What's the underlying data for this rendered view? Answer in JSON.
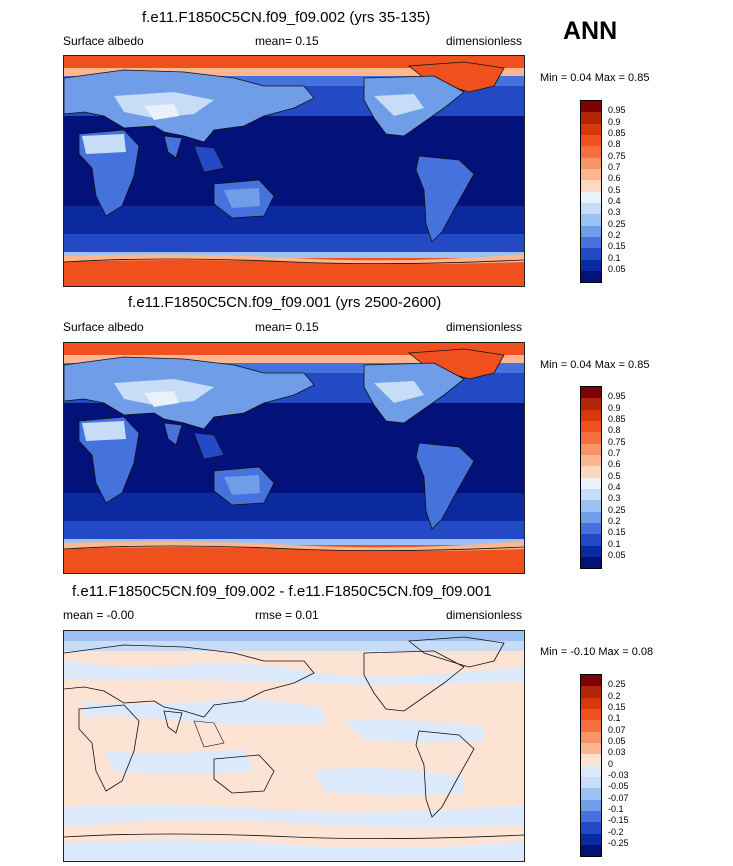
{
  "season": "ANN",
  "panels": [
    {
      "title": "f.e11.F1850C5CN.f09_f09.002 (yrs 35-135)",
      "left_label": "Surface albedo",
      "center_label": "mean=  0.15",
      "right_label": "dimensionless",
      "minmax": "Min =   0.04 Max =   0.85",
      "levels": [
        "0.95",
        "0.9",
        "0.85",
        "0.8",
        "0.75",
        "0.7",
        "0.6",
        "0.5",
        "0.4",
        "0.3",
        "0.25",
        "0.2",
        "0.15",
        "0.1",
        "0.05"
      ],
      "colors": [
        "#7f0000",
        "#b02505",
        "#d4380b",
        "#f0501e",
        "#f5703f",
        "#f99468",
        "#fcb690",
        "#fcd9c3",
        "#eaf1fb",
        "#c7dcf7",
        "#9dc1f2",
        "#6f9de8",
        "#4672de",
        "#2449c4",
        "#0c2aa0",
        "#03117a"
      ]
    },
    {
      "title": "f.e11.F1850C5CN.f09_f09.001 (yrs 2500-2600)",
      "left_label": "Surface albedo",
      "center_label": "mean=  0.15",
      "right_label": "dimensionless",
      "minmax": "Min =   0.04 Max =   0.85",
      "levels": [
        "0.95",
        "0.9",
        "0.85",
        "0.8",
        "0.75",
        "0.7",
        "0.6",
        "0.5",
        "0.4",
        "0.3",
        "0.25",
        "0.2",
        "0.15",
        "0.1",
        "0.05"
      ],
      "colors": [
        "#7f0000",
        "#b02505",
        "#d4380b",
        "#f0501e",
        "#f5703f",
        "#f99468",
        "#fcb690",
        "#fcd9c3",
        "#eaf1fb",
        "#c7dcf7",
        "#9dc1f2",
        "#6f9de8",
        "#4672de",
        "#2449c4",
        "#0c2aa0",
        "#03117a"
      ]
    },
    {
      "title": "f.e11.F1850C5CN.f09_f09.002 - f.e11.F1850C5CN.f09_f09.001",
      "left_label": "mean =  -0.00",
      "center_label": "rmse =  0.01",
      "right_label": "dimensionless",
      "minmax": "Min =  -0.10 Max =   0.08",
      "levels": [
        "0.25",
        "0.2",
        "0.15",
        "0.1",
        "0.07",
        "0.05",
        "0.03",
        "0",
        "-0.03",
        "-0.05",
        "-0.07",
        "-0.1",
        "-0.15",
        "-0.2",
        "-0.25"
      ],
      "colors": [
        "#7f0000",
        "#b02505",
        "#d4380b",
        "#f0501e",
        "#f5703f",
        "#f99468",
        "#fcb690",
        "#fce3d3",
        "#dbe9fb",
        "#c7dcf7",
        "#9dc1f2",
        "#6f9de8",
        "#4672de",
        "#2449c4",
        "#0c2aa0",
        "#03117a"
      ]
    }
  ]
}
